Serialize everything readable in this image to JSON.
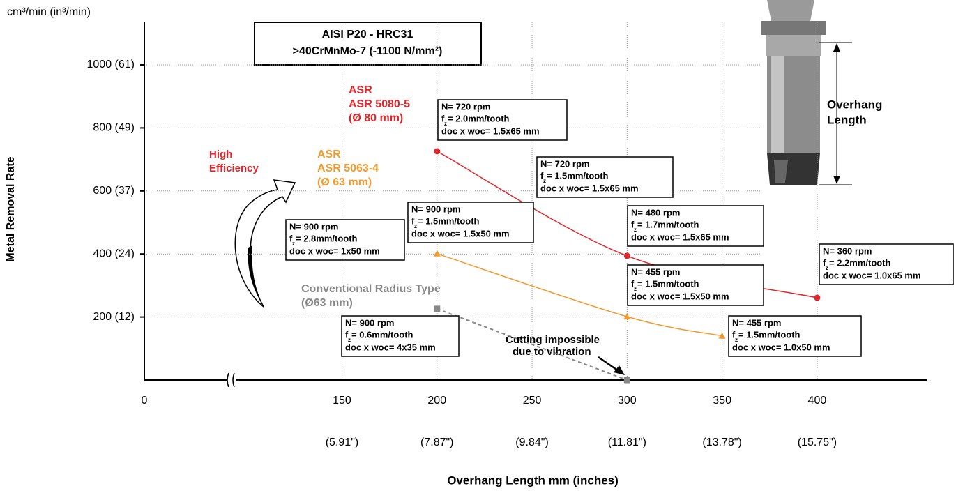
{
  "chart_data": {
    "type": "line",
    "y_unit": "cm³/min (in³/min)",
    "y_label": "Metal Removal Rate",
    "x_label": "Overhang Length mm (inches)",
    "title_lines": [
      "AISI P20 - HRC31",
      ">40CrMnMo-7 (-1100 N/mm²)"
    ],
    "xlim": [
      46,
      458
    ],
    "ylim": [
      0,
      1135
    ],
    "axis_break": true,
    "xticks": [
      0,
      150,
      200,
      250,
      300,
      350,
      400
    ],
    "x_inch_labels": [
      null,
      "(5.91\")",
      "(7.87\")",
      "(9.84\")",
      "(11.81\")",
      "(13.78\")",
      "(15.75\")"
    ],
    "yticks": [
      {
        "value": 200,
        "label": "200 (12)"
      },
      {
        "value": 400,
        "label": "400 (24)"
      },
      {
        "value": 600,
        "label": "600 (37)"
      },
      {
        "value": 800,
        "label": "800 (49)"
      },
      {
        "value": 1000,
        "label": "1000 (61)"
      }
    ],
    "grid": true,
    "series": [
      {
        "label_lines": [
          "ASR",
          "ASR 5080-5",
          "(Ø 80 mm)"
        ],
        "color": "#e3262b",
        "marker": "circle",
        "x": [
          200,
          300,
          400
        ],
        "values": [
          726,
          394,
          261
        ]
      },
      {
        "label_lines": [
          "ASR",
          "ASR 5063-4",
          "(Ø 63 mm)"
        ],
        "color": "#f29a2e",
        "marker": "triangle",
        "x": [
          200,
          300,
          350
        ],
        "values": [
          401,
          201,
          140
        ]
      },
      {
        "label_lines": [
          "Conventional Radius Type",
          "(Ø63 mm)"
        ],
        "color": "#888888",
        "marker": "square",
        "dashed": true,
        "x": [
          200,
          300
        ],
        "values": [
          226,
          0
        ]
      }
    ],
    "fz_symbol": "f",
    "fz_sub": "z",
    "annotations": [
      {
        "n": "N= 720 rpm",
        "fz": "= 2.0mm/tooth",
        "doc": "doc x woc= 1.5x65 mm"
      },
      {
        "n": "N= 720 rpm",
        "fz": "= 1.5mm/tooth",
        "doc": "doc x woc= 1.5x65 mm"
      },
      {
        "n": "N= 480 rpm",
        "fz": "= 1.7mm/tooth",
        "doc": "doc x woc= 1.5x65 mm"
      },
      {
        "n": "N= 360 rpm",
        "fz": "= 2.2mm/tooth",
        "doc": "doc x woc= 1.0x65 mm"
      },
      {
        "n": "N= 455 rpm",
        "fz": "= 1.5mm/tooth",
        "doc": "doc x woc= 1.5x50 mm"
      },
      {
        "n": "N= 900 rpm",
        "fz": "= 1.5mm/tooth",
        "doc": "doc x woc= 1.5x50 mm"
      },
      {
        "n": "N= 900 rpm",
        "fz": "= 2.8mm/tooth",
        "doc": "doc x woc= 1x50 mm"
      },
      {
        "n": "N= 900 rpm",
        "fz": "= 0.6mm/tooth",
        "doc": "doc x woc= 4x35 mm"
      },
      {
        "n": "N= 455 rpm",
        "fz": "= 1.5mm/tooth",
        "doc": "doc x woc= 1.0x50 mm"
      }
    ],
    "efficiency_lines": [
      "High",
      "Efficiency"
    ],
    "vibration_lines": [
      "Cutting impossible",
      "due to vibration"
    ],
    "overhang_lines": [
      "Overhang",
      "Length"
    ]
  }
}
